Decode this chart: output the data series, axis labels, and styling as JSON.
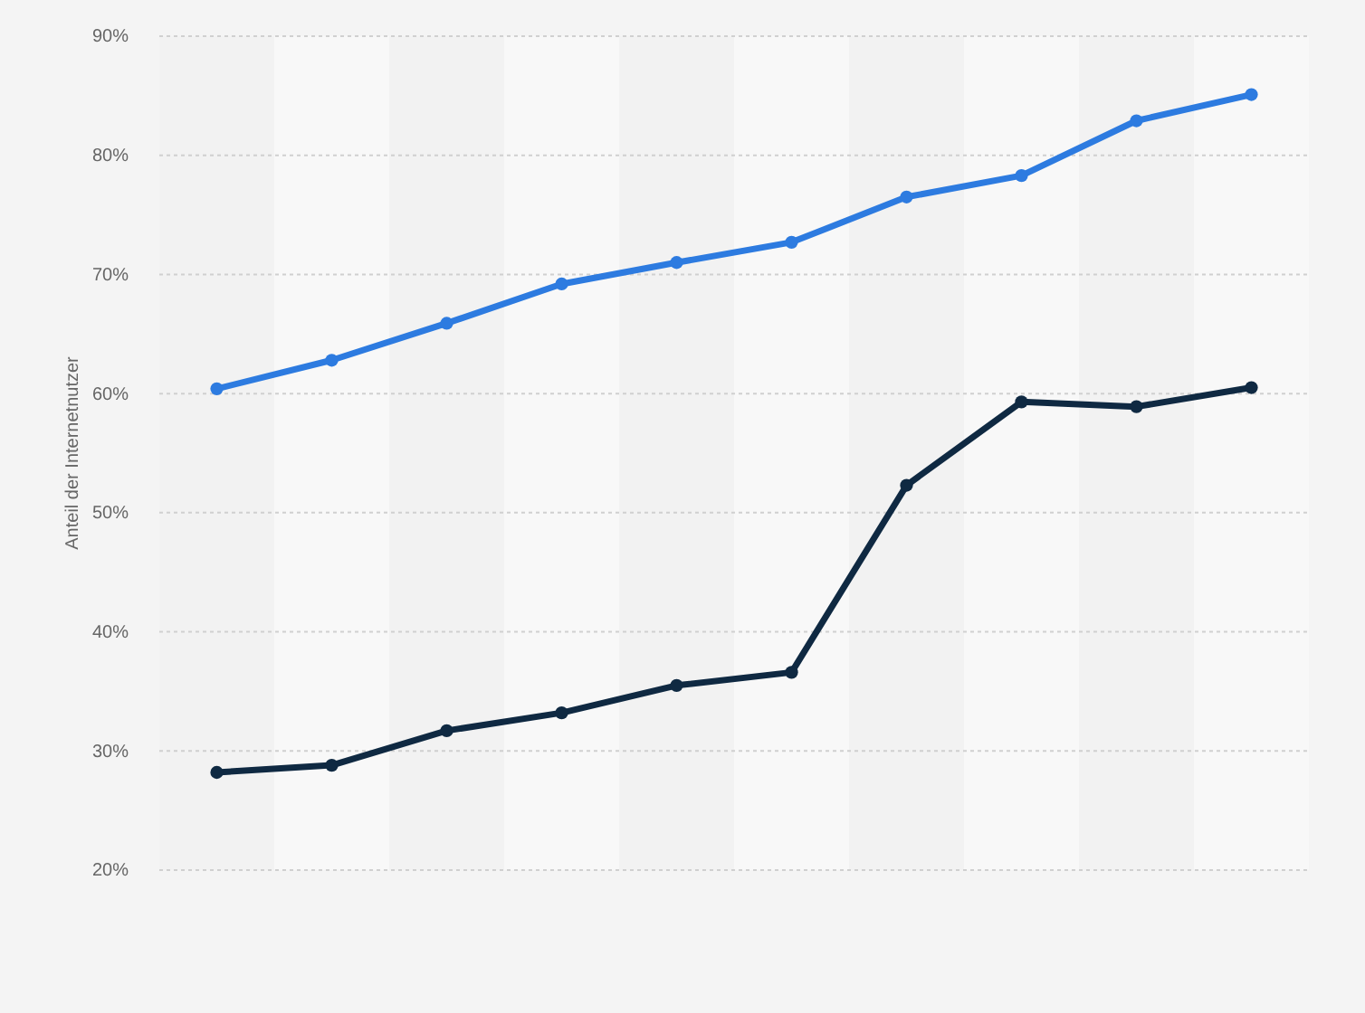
{
  "chart_data": {
    "type": "line",
    "ylabel": "Anteil der Internetnutzer",
    "categories": [
      null,
      null,
      null,
      null,
      null,
      null,
      null,
      null,
      null,
      null
    ],
    "series": [
      {
        "color": "#2d7be0",
        "values": [
          60.4,
          62.8,
          65.9,
          69.2,
          71.0,
          72.7,
          76.5,
          78.3,
          82.9,
          85.1
        ]
      },
      {
        "color": "#0f2942",
        "values": [
          28.2,
          28.8,
          31.7,
          33.2,
          35.5,
          36.6,
          52.3,
          59.3,
          58.9,
          60.5
        ]
      }
    ],
    "ylim": [
      20,
      90
    ],
    "yticks": [
      {
        "value": 20,
        "label": "20%"
      },
      {
        "value": 30,
        "label": "30%"
      },
      {
        "value": 40,
        "label": "40%"
      },
      {
        "value": 50,
        "label": "50%"
      },
      {
        "value": 60,
        "label": "60%"
      },
      {
        "value": 70,
        "label": "70%"
      },
      {
        "value": 80,
        "label": "80%"
      },
      {
        "value": 90,
        "label": "90%"
      }
    ],
    "grid": "y",
    "marker": "circle",
    "line_style": "solid",
    "legend": false
  }
}
